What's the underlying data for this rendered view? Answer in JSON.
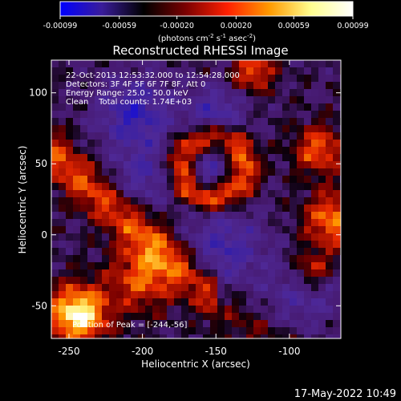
{
  "chart_data": {
    "type": "heatmap",
    "title": "Reconstructed RHESSI Image",
    "xlabel": "Heliocentric X (arcsec)",
    "ylabel": "Heliocentric Y (arcsec)",
    "xlim": [
      -262,
      -65
    ],
    "ylim": [
      -73,
      123
    ],
    "x_ticks": [
      "-250",
      "-200",
      "-150",
      "-100"
    ],
    "y_ticks": [
      "100",
      "50",
      "0",
      "-50"
    ],
    "x_tick_values": [
      -250,
      -200,
      -150,
      -100
    ],
    "y_tick_values": [
      100,
      50,
      0,
      -50
    ],
    "colorbar": {
      "ticks": [
        "-0.00099",
        "-0.00059",
        "-0.00020",
        "0.00020",
        "0.00059",
        "0.00099"
      ],
      "tick_values": [
        -0.00099,
        -0.00059,
        -0.0002,
        0.0002,
        0.00059,
        0.00099
      ],
      "range": [
        -0.00099,
        0.00099
      ],
      "unit_prefix": "(photons cm",
      "unit_exp1": "-2",
      "unit_mid": " s",
      "unit_exp2": "-1",
      "unit_mid2": " asec",
      "unit_exp3": "-2",
      "unit_suffix": ")",
      "colors": [
        "#0000ff",
        "#3a1c9a",
        "#000000",
        "#7a0000",
        "#ff2000",
        "#ff9a00",
        "#ffff90",
        "#ffffff"
      ]
    },
    "annotations": [
      "22-Oct-2013 12:53:32.000 to 12:54:28.000",
      "Detectors: 3F 4F 5F 6F 7F 8F, Att 0",
      "Energy Range: 25.0 - 50.0 keV",
      "Clean    Total counts: 1.74E+03"
    ],
    "peak_label": "Position of Peak = [-244,-56]",
    "peak": [
      -244,
      -56
    ],
    "hot_ring_center": [
      -152,
      48
    ],
    "hot_ring_radius": 22
  },
  "footer": {
    "timestamp": "17-May-2022 10:49"
  },
  "colors": {
    "background": "#000000",
    "text": "#ffffff"
  }
}
